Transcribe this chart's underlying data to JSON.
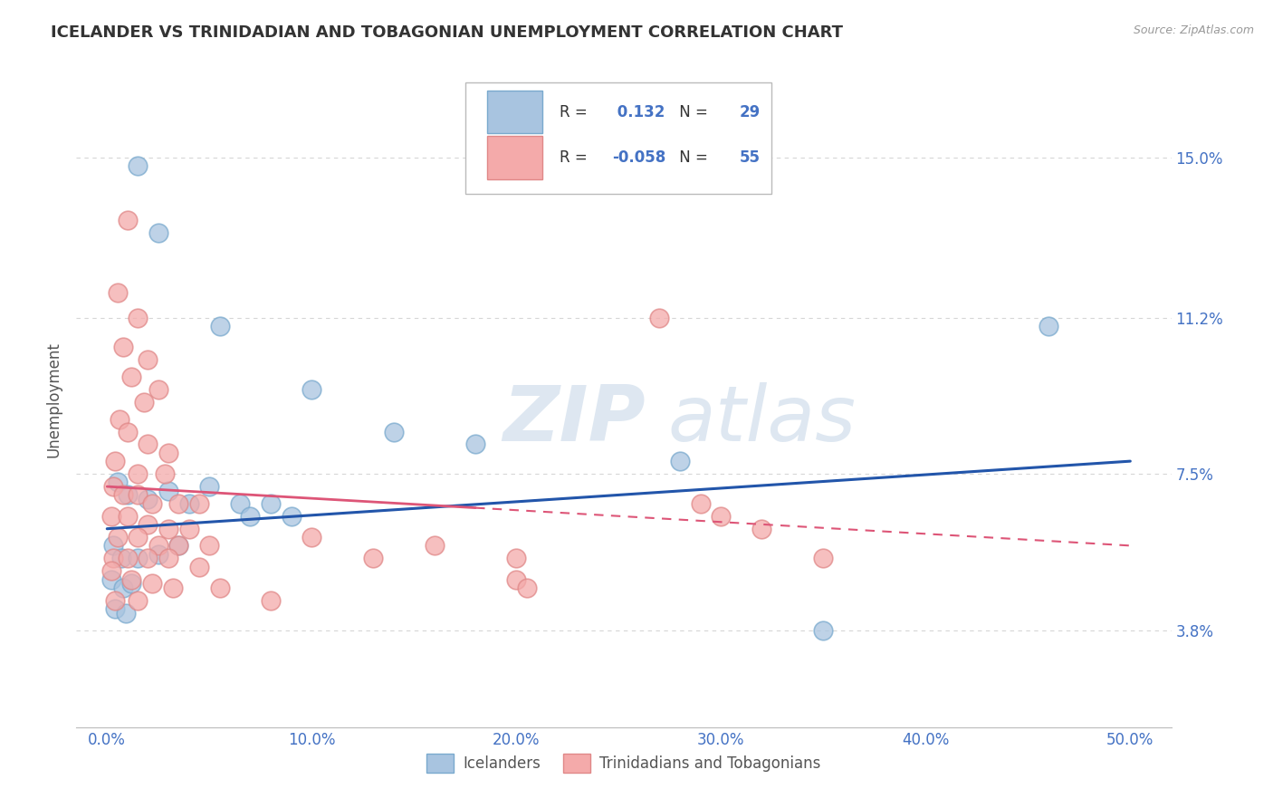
{
  "title": "ICELANDER VS TRINIDADIAN AND TOBAGONIAN UNEMPLOYMENT CORRELATION CHART",
  "source": "Source: ZipAtlas.com",
  "xlabel_ticks": [
    "0.0%",
    "10.0%",
    "20.0%",
    "30.0%",
    "40.0%",
    "50.0%"
  ],
  "xlabel_values": [
    0.0,
    10.0,
    20.0,
    30.0,
    40.0,
    50.0
  ],
  "ylabel_ticks": [
    "3.8%",
    "7.5%",
    "11.2%",
    "15.0%"
  ],
  "ylabel_values": [
    3.8,
    7.5,
    11.2,
    15.0
  ],
  "xlim": [
    -1.5,
    52
  ],
  "ylim": [
    1.5,
    17.0
  ],
  "legend": {
    "blue_R": "0.132",
    "blue_N": "29",
    "pink_R": "-0.058",
    "pink_N": "55"
  },
  "blue_color": "#A8C4E0",
  "pink_color": "#F4AAAA",
  "blue_edge": "#7AAACE",
  "pink_edge": "#E08888",
  "blue_scatter": [
    [
      1.5,
      14.8
    ],
    [
      2.5,
      13.2
    ],
    [
      5.5,
      11.0
    ],
    [
      10.0,
      9.5
    ],
    [
      14.0,
      8.5
    ],
    [
      18.0,
      8.2
    ],
    [
      0.5,
      7.3
    ],
    [
      1.0,
      7.0
    ],
    [
      2.0,
      6.9
    ],
    [
      3.0,
      7.1
    ],
    [
      4.0,
      6.8
    ],
    [
      5.0,
      7.2
    ],
    [
      6.5,
      6.8
    ],
    [
      7.0,
      6.5
    ],
    [
      8.0,
      6.8
    ],
    [
      9.0,
      6.5
    ],
    [
      0.3,
      5.8
    ],
    [
      0.7,
      5.5
    ],
    [
      1.5,
      5.5
    ],
    [
      2.5,
      5.6
    ],
    [
      3.5,
      5.8
    ],
    [
      0.2,
      5.0
    ],
    [
      0.8,
      4.8
    ],
    [
      1.2,
      4.9
    ],
    [
      0.4,
      4.3
    ],
    [
      0.9,
      4.2
    ],
    [
      35.0,
      3.8
    ],
    [
      46.0,
      11.0
    ],
    [
      28.0,
      7.8
    ]
  ],
  "pink_scatter": [
    [
      1.0,
      13.5
    ],
    [
      0.5,
      11.8
    ],
    [
      1.5,
      11.2
    ],
    [
      0.8,
      10.5
    ],
    [
      2.0,
      10.2
    ],
    [
      1.2,
      9.8
    ],
    [
      2.5,
      9.5
    ],
    [
      1.8,
      9.2
    ],
    [
      0.6,
      8.8
    ],
    [
      1.0,
      8.5
    ],
    [
      2.0,
      8.2
    ],
    [
      3.0,
      8.0
    ],
    [
      0.4,
      7.8
    ],
    [
      1.5,
      7.5
    ],
    [
      2.8,
      7.5
    ],
    [
      0.3,
      7.2
    ],
    [
      0.8,
      7.0
    ],
    [
      1.5,
      7.0
    ],
    [
      2.2,
      6.8
    ],
    [
      3.5,
      6.8
    ],
    [
      4.5,
      6.8
    ],
    [
      0.2,
      6.5
    ],
    [
      1.0,
      6.5
    ],
    [
      2.0,
      6.3
    ],
    [
      3.0,
      6.2
    ],
    [
      4.0,
      6.2
    ],
    [
      0.5,
      6.0
    ],
    [
      1.5,
      6.0
    ],
    [
      2.5,
      5.8
    ],
    [
      3.5,
      5.8
    ],
    [
      5.0,
      5.8
    ],
    [
      0.3,
      5.5
    ],
    [
      1.0,
      5.5
    ],
    [
      2.0,
      5.5
    ],
    [
      3.0,
      5.5
    ],
    [
      4.5,
      5.3
    ],
    [
      0.2,
      5.2
    ],
    [
      1.2,
      5.0
    ],
    [
      2.2,
      4.9
    ],
    [
      3.2,
      4.8
    ],
    [
      5.5,
      4.8
    ],
    [
      0.4,
      4.5
    ],
    [
      1.5,
      4.5
    ],
    [
      8.0,
      4.5
    ],
    [
      10.0,
      6.0
    ],
    [
      13.0,
      5.5
    ],
    [
      16.0,
      5.8
    ],
    [
      20.0,
      5.5
    ],
    [
      20.0,
      5.0
    ],
    [
      20.5,
      4.8
    ],
    [
      27.0,
      11.2
    ],
    [
      29.0,
      6.8
    ],
    [
      30.0,
      6.5
    ],
    [
      32.0,
      6.2
    ],
    [
      35.0,
      5.5
    ]
  ],
  "blue_trend": {
    "x_start": 0,
    "x_end": 50,
    "y_start": 6.2,
    "y_end": 7.8
  },
  "pink_trend": {
    "x_start": 0,
    "x_end": 50,
    "y_start": 7.2,
    "y_end": 5.8
  },
  "pink_trend_solid_end": 18,
  "grid_color": "#CCCCCC",
  "background_color": "#FFFFFF",
  "title_color": "#333333",
  "axis_label_color": "#4472C4",
  "tick_label_color": "#4472C4"
}
